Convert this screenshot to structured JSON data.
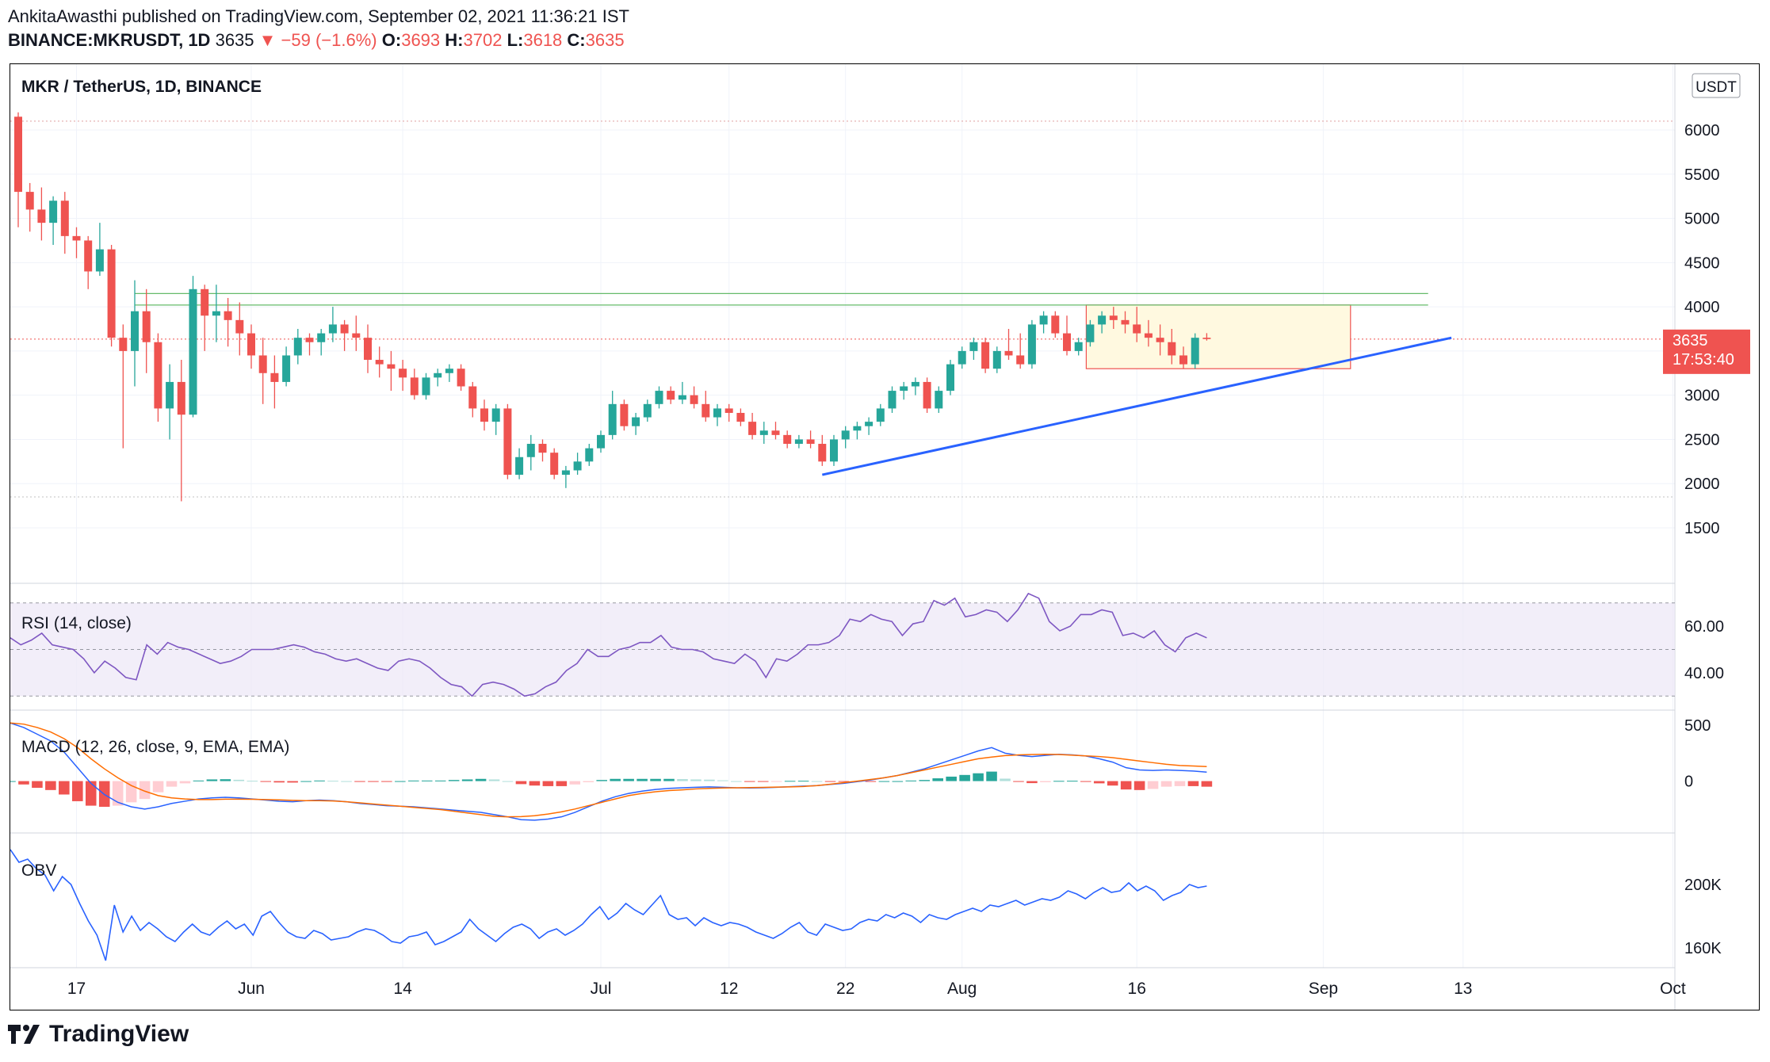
{
  "header": {
    "line1": "AnkitaAwasthi published on TradingView.com, September 02, 2021 11:36:21 IST",
    "symbol": "BINANCE:MKRUSDT, 1D",
    "last": "3635",
    "change": "▼ −59 (−1.6%)",
    "o_label": "O:",
    "o": "3693",
    "h_label": "H:",
    "h": "3702",
    "l_label": "L:",
    "l": "3618",
    "c_label": "C:",
    "c": "3635"
  },
  "footer": {
    "brand": "TradingView"
  },
  "colors": {
    "up": "#26a69a",
    "down": "#ef5350",
    "trendline": "#2962ff",
    "resistance": "#66bb6a",
    "rsi": "#7e57c2",
    "macd": "#2962ff",
    "signal": "#ff6d00",
    "obv": "#2962ff"
  },
  "chart_data": {
    "type": "candlestick",
    "title": "MKR / TetherUS, 1D, BINANCE",
    "currency": "USDT",
    "x_tick_labels": [
      "17",
      "Jun",
      "14",
      "Jul",
      "12",
      "22",
      "Aug",
      "16",
      "Sep",
      "13",
      "Oct"
    ],
    "y_ticks": [
      1500,
      2000,
      2500,
      3000,
      3500,
      4000,
      4500,
      5000,
      5500,
      6000
    ],
    "ylim": [
      1300,
      6500
    ],
    "last_price_label": "3635",
    "countdown": "17:53:40",
    "start_date": "2021-05-12",
    "candles": [
      [
        6150,
        6200,
        4900,
        5300
      ],
      [
        5300,
        5400,
        4850,
        5100
      ],
      [
        5100,
        5350,
        4750,
        4950
      ],
      [
        4950,
        5250,
        4700,
        5200
      ],
      [
        5200,
        5300,
        4600,
        4800
      ],
      [
        4800,
        4900,
        4550,
        4750
      ],
      [
        4750,
        4800,
        4200,
        4400
      ],
      [
        4400,
        4950,
        4350,
        4650
      ],
      [
        4650,
        4700,
        3550,
        3650
      ],
      [
        3650,
        3800,
        2400,
        3500
      ],
      [
        3500,
        4300,
        3100,
        3950
      ],
      [
        3950,
        4200,
        3250,
        3600
      ],
      [
        3600,
        3700,
        2700,
        2850
      ],
      [
        2850,
        3350,
        2500,
        3150
      ],
      [
        3150,
        3400,
        1800,
        2780
      ],
      [
        2780,
        4350,
        2750,
        4200
      ],
      [
        4200,
        4250,
        3500,
        3900
      ],
      [
        3900,
        4250,
        3600,
        3950
      ],
      [
        3950,
        4100,
        3550,
        3850
      ],
      [
        3850,
        4050,
        3450,
        3700
      ],
      [
        3700,
        3800,
        3300,
        3450
      ],
      [
        3450,
        3650,
        2900,
        3250
      ],
      [
        3250,
        3450,
        2850,
        3150
      ],
      [
        3150,
        3550,
        3100,
        3450
      ],
      [
        3450,
        3750,
        3350,
        3650
      ],
      [
        3650,
        3700,
        3450,
        3600
      ],
      [
        3600,
        3750,
        3450,
        3700
      ],
      [
        3700,
        4000,
        3600,
        3800
      ],
      [
        3800,
        3850,
        3500,
        3700
      ],
      [
        3700,
        3900,
        3500,
        3650
      ],
      [
        3650,
        3800,
        3250,
        3400
      ],
      [
        3400,
        3550,
        3200,
        3350
      ],
      [
        3350,
        3500,
        3050,
        3300
      ],
      [
        3300,
        3400,
        3050,
        3200
      ],
      [
        3200,
        3300,
        2950,
        3000
      ],
      [
        3000,
        3250,
        2950,
        3200
      ],
      [
        3200,
        3300,
        3100,
        3250
      ],
      [
        3250,
        3350,
        3150,
        3300
      ],
      [
        3300,
        3350,
        3050,
        3100
      ],
      [
        3100,
        3150,
        2750,
        2850
      ],
      [
        2850,
        2950,
        2600,
        2700
      ],
      [
        2700,
        2900,
        2550,
        2850
      ],
      [
        2850,
        2900,
        2050,
        2100
      ],
      [
        2100,
        2400,
        2050,
        2300
      ],
      [
        2300,
        2550,
        2150,
        2450
      ],
      [
        2450,
        2500,
        2250,
        2350
      ],
      [
        2350,
        2400,
        2050,
        2100
      ],
      [
        2100,
        2200,
        1950,
        2150
      ],
      [
        2150,
        2350,
        2100,
        2250
      ],
      [
        2250,
        2450,
        2200,
        2400
      ],
      [
        2400,
        2600,
        2350,
        2550
      ],
      [
        2550,
        3050,
        2500,
        2900
      ],
      [
        2900,
        2950,
        2600,
        2650
      ],
      [
        2650,
        2800,
        2550,
        2750
      ],
      [
        2750,
        2950,
        2700,
        2900
      ],
      [
        2900,
        3100,
        2850,
        3050
      ],
      [
        3050,
        3100,
        2900,
        2950
      ],
      [
        2950,
        3150,
        2900,
        3000
      ],
      [
        3000,
        3100,
        2850,
        2900
      ],
      [
        2900,
        3050,
        2700,
        2750
      ],
      [
        2750,
        2900,
        2650,
        2850
      ],
      [
        2850,
        2900,
        2700,
        2800
      ],
      [
        2800,
        2850,
        2650,
        2700
      ],
      [
        2700,
        2800,
        2500,
        2550
      ],
      [
        2550,
        2700,
        2450,
        2600
      ],
      [
        2600,
        2700,
        2500,
        2550
      ],
      [
        2550,
        2600,
        2400,
        2450
      ],
      [
        2450,
        2550,
        2400,
        2500
      ],
      [
        2500,
        2600,
        2400,
        2450
      ],
      [
        2450,
        2550,
        2200,
        2250
      ],
      [
        2250,
        2550,
        2200,
        2500
      ],
      [
        2500,
        2650,
        2400,
        2600
      ],
      [
        2600,
        2700,
        2500,
        2650
      ],
      [
        2650,
        2750,
        2550,
        2700
      ],
      [
        2700,
        2900,
        2650,
        2850
      ],
      [
        2850,
        3100,
        2800,
        3050
      ],
      [
        3050,
        3150,
        2950,
        3100
      ],
      [
        3100,
        3200,
        3000,
        3150
      ],
      [
        3150,
        3200,
        2800,
        2850
      ],
      [
        2850,
        3100,
        2800,
        3050
      ],
      [
        3050,
        3400,
        3000,
        3350
      ],
      [
        3350,
        3550,
        3300,
        3500
      ],
      [
        3500,
        3650,
        3400,
        3600
      ],
      [
        3600,
        3650,
        3250,
        3300
      ],
      [
        3300,
        3550,
        3250,
        3500
      ],
      [
        3500,
        3750,
        3400,
        3450
      ],
      [
        3450,
        3700,
        3300,
        3350
      ],
      [
        3350,
        3850,
        3300,
        3800
      ],
      [
        3800,
        3950,
        3700,
        3900
      ],
      [
        3900,
        3950,
        3650,
        3700
      ],
      [
        3700,
        3900,
        3450,
        3500
      ],
      [
        3500,
        3650,
        3450,
        3600
      ],
      [
        3600,
        3850,
        3550,
        3800
      ],
      [
        3800,
        3950,
        3700,
        3900
      ],
      [
        3900,
        4000,
        3750,
        3850
      ],
      [
        3850,
        3950,
        3700,
        3800
      ],
      [
        3800,
        4000,
        3600,
        3700
      ],
      [
        3700,
        3850,
        3550,
        3650
      ],
      [
        3650,
        3800,
        3450,
        3600
      ],
      [
        3600,
        3750,
        3350,
        3450
      ],
      [
        3450,
        3550,
        3300,
        3350
      ],
      [
        3350,
        3700,
        3300,
        3650
      ],
      [
        3650,
        3702,
        3618,
        3635
      ]
    ],
    "x_tick_positions": {
      "17": 5,
      "Jun": 20,
      "14": 33,
      "Jul": 50,
      "12": 61,
      "22": 71,
      "Aug": 81,
      "16": 96,
      "Sep": 112,
      "13": 124,
      "Oct": 142
    },
    "resistance_levels": [
      4150,
      4020
    ],
    "trendline": {
      "from": [
        69,
        2100
      ],
      "to": [
        123,
        3650
      ]
    },
    "range_box": {
      "from": 92,
      "to": 114,
      "top": 4020,
      "bottom": 3300
    },
    "rsi": {
      "label": "RSI (14, close)",
      "ticks": [
        "60.00",
        "40.00"
      ],
      "bands": [
        70,
        50,
        30
      ],
      "ylim": [
        25,
        75
      ],
      "values": [
        55,
        52,
        54,
        57,
        52,
        51,
        50,
        46,
        40,
        45,
        42,
        38,
        37,
        52,
        48,
        53,
        51,
        50,
        48,
        46,
        44,
        45,
        47,
        50,
        50,
        50,
        51,
        52,
        51,
        49,
        48,
        46,
        45,
        46,
        44,
        42,
        41,
        45,
        46,
        45,
        42,
        38,
        35,
        34,
        30,
        35,
        36,
        35,
        33,
        30,
        31,
        34,
        36,
        41,
        44,
        50,
        47,
        47,
        50,
        51,
        53,
        53,
        56,
        51,
        50,
        50,
        49,
        46,
        45,
        44,
        48,
        45,
        38,
        46,
        45,
        48,
        52,
        52,
        53,
        56,
        63,
        62,
        65,
        63,
        62,
        56,
        61,
        62,
        71,
        69,
        72,
        64,
        65,
        67,
        66,
        62,
        67,
        74,
        72,
        62,
        58,
        60,
        65,
        65,
        67,
        66,
        56,
        57,
        55,
        58,
        52,
        49,
        55,
        57,
        55
      ]
    },
    "macd": {
      "label": "MACD (12, 26, close, 9, EMA, EMA)",
      "ticks": [
        "500",
        "0"
      ],
      "ylim": [
        -450,
        600
      ],
      "macd": [
        520,
        480,
        420,
        360,
        260,
        120,
        -20,
        -120,
        -190,
        -230,
        -250,
        -230,
        -200,
        -180,
        -160,
        -150,
        -145,
        -150,
        -160,
        -170,
        -180,
        -185,
        -175,
        -170,
        -175,
        -185,
        -200,
        -210,
        -220,
        -225,
        -230,
        -240,
        -250,
        -260,
        -270,
        -280,
        -300,
        -320,
        -345,
        -350,
        -340,
        -320,
        -280,
        -230,
        -180,
        -140,
        -110,
        -90,
        -75,
        -65,
        -60,
        -55,
        -52,
        -55,
        -60,
        -62,
        -60,
        -55,
        -50,
        -45,
        -40,
        -30,
        -20,
        -5,
        10,
        30,
        50,
        80,
        110,
        150,
        190,
        230,
        270,
        300,
        250,
        230,
        220,
        230,
        240,
        235,
        225,
        200,
        170,
        120,
        100,
        95,
        100,
        95,
        90,
        80
      ],
      "signal": [
        520,
        510,
        480,
        440,
        380,
        300,
        200,
        110,
        30,
        -40,
        -90,
        -130,
        -150,
        -160,
        -165,
        -165,
        -162,
        -162,
        -163,
        -165,
        -168,
        -172,
        -175,
        -175,
        -178,
        -185,
        -195,
        -205,
        -215,
        -225,
        -235,
        -245,
        -255,
        -270,
        -285,
        -300,
        -315,
        -320,
        -318,
        -310,
        -295,
        -275,
        -250,
        -220,
        -190,
        -160,
        -130,
        -110,
        -95,
        -85,
        -78,
        -70,
        -65,
        -62,
        -60,
        -58,
        -56,
        -54,
        -52,
        -48,
        -40,
        -28,
        -14,
        0,
        15,
        30,
        50,
        75,
        100,
        125,
        150,
        175,
        200,
        215,
        228,
        235,
        238,
        240,
        238,
        232,
        226,
        220,
        210,
        195,
        180,
        165,
        150,
        140,
        135,
        130
      ]
    },
    "obv": {
      "label": "OBV",
      "ticks": [
        "200K",
        "160K"
      ],
      "ylim": [
        150,
        230
      ],
      "values": [
        222,
        214,
        216,
        210,
        206,
        196,
        205,
        200,
        188,
        177,
        168,
        152,
        187,
        170,
        180,
        171,
        176,
        172,
        167,
        164,
        170,
        175,
        170,
        168,
        173,
        177,
        172,
        175,
        168,
        180,
        183,
        176,
        170,
        167,
        166,
        171,
        169,
        165,
        166,
        167,
        170,
        172,
        171,
        168,
        164,
        163,
        167,
        168,
        170,
        162,
        164,
        167,
        170,
        178,
        172,
        168,
        164,
        169,
        173,
        175,
        172,
        166,
        170,
        172,
        168,
        171,
        175,
        181,
        186,
        178,
        182,
        188,
        184,
        181,
        187,
        193,
        181,
        178,
        179,
        174,
        179,
        176,
        174,
        176,
        175,
        173,
        170,
        168,
        166,
        169,
        173,
        176,
        170,
        168,
        175,
        173,
        171,
        172,
        176,
        178,
        177,
        181,
        179,
        182,
        180,
        176,
        181,
        179,
        178,
        181,
        183,
        185,
        183,
        187,
        186,
        188,
        190,
        187,
        189,
        191,
        190,
        192,
        196,
        194,
        191,
        195,
        198,
        195,
        196,
        201,
        196,
        199,
        196,
        190,
        193,
        195,
        200,
        198,
        199
      ]
    }
  }
}
